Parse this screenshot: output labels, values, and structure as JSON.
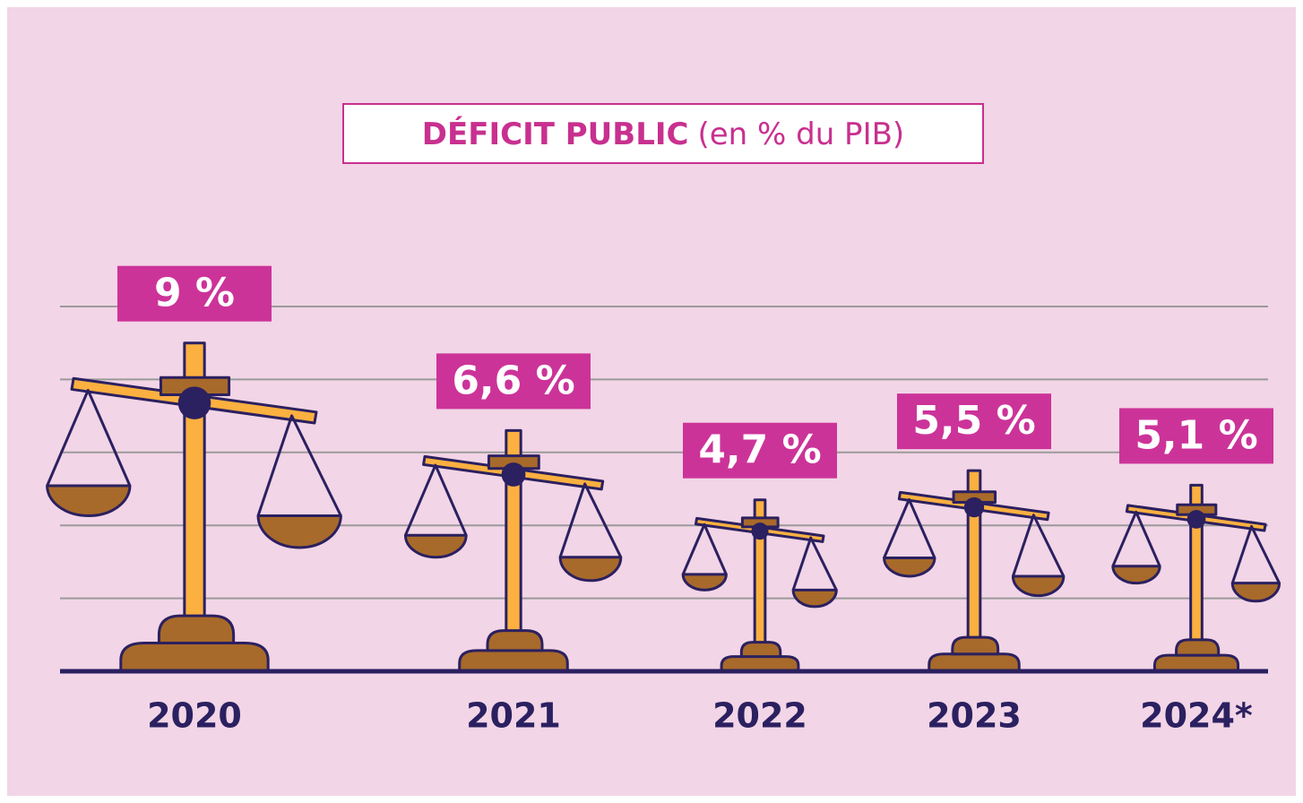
{
  "chart_data": {
    "type": "scale-pictogram",
    "title": "DÉFICIT PUBLIC",
    "subtitle": "(en % du PIB)",
    "categories": [
      "2020",
      "2021",
      "2022",
      "2023",
      "2024*"
    ],
    "values": [
      9,
      6.6,
      4.7,
      5.5,
      5.1
    ],
    "value_labels": [
      "9 %",
      "6,6 %",
      "4,7 %",
      "5,5 %",
      "5,1 %"
    ],
    "ylim": [
      0,
      10
    ],
    "yticks": [
      0,
      2,
      4,
      6,
      8,
      10
    ],
    "grid": true,
    "color": "#fbb040",
    "label_color": "#cc3399"
  }
}
